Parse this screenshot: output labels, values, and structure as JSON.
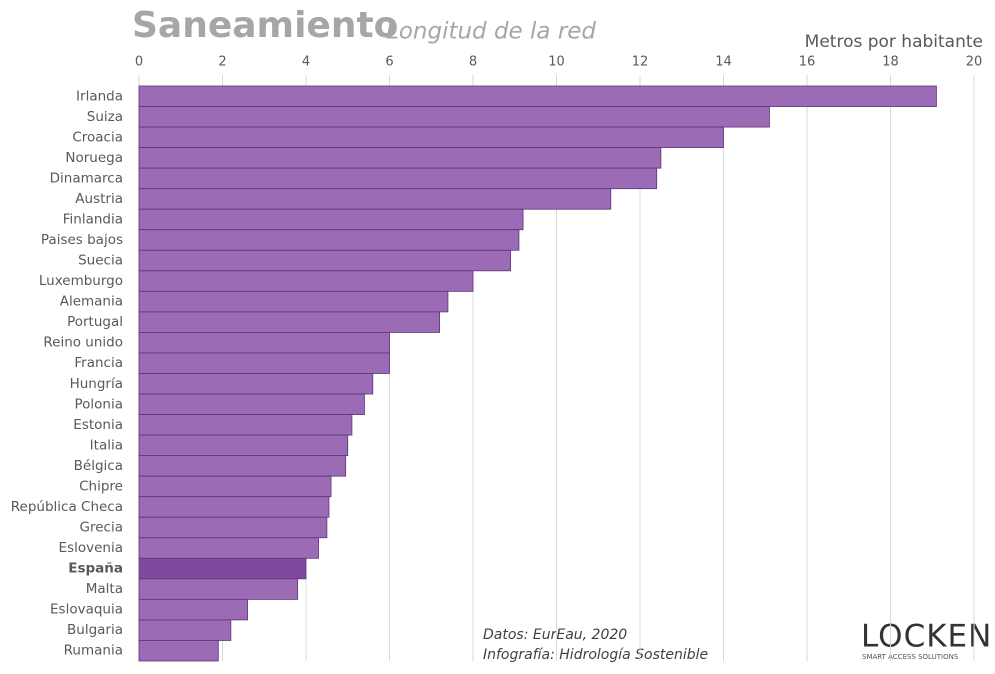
{
  "chart_data": {
    "type": "hbar",
    "title": "Saneamiento",
    "subtitle": "Longitud de la red",
    "x_label": "Metros por habitante",
    "categories": [
      "Irlanda",
      "Suiza",
      "Croacia",
      "Noruega",
      "Dinamarca",
      "Austria",
      "Finlandia",
      "Paises bajos",
      "Suecia",
      "Luxemburgo",
      "Alemania",
      "Portugal",
      "Reino unido",
      "Francia",
      "Hungría",
      "Polonia",
      "Estonia",
      "Italia",
      "Bélgica",
      "Chipre",
      "República Checa",
      "Grecia",
      "Eslovenia",
      "España",
      "Malta",
      "Eslovaquia",
      "Bulgaria",
      "Rumania"
    ],
    "values": [
      19.1,
      15.1,
      14.0,
      12.5,
      12.4,
      11.3,
      9.2,
      9.1,
      8.9,
      8.0,
      7.4,
      7.2,
      6.0,
      6.0,
      5.6,
      5.4,
      5.1,
      5.0,
      4.95,
      4.6,
      4.55,
      4.5,
      4.3,
      4.0,
      3.8,
      2.6,
      2.2,
      1.9
    ],
    "color": "#9b6bb5",
    "colors": [
      "#9b6bb5",
      "#9b6bb5",
      "#9b6bb5",
      "#9b6bb5",
      "#9b6bb5",
      "#9b6bb5",
      "#9b6bb5",
      "#9b6bb5",
      "#9b6bb5",
      "#9b6bb5",
      "#9b6bb5",
      "#9b6bb5",
      "#9b6bb5",
      "#9b6bb5",
      "#9b6bb5",
      "#9b6bb5",
      "#9b6bb5",
      "#9b6bb5",
      "#9b6bb5",
      "#9b6bb5",
      "#9b6bb5",
      "#9b6bb5",
      "#9b6bb5",
      "#7f4a9e",
      "#9b6bb5",
      "#9b6bb5",
      "#9b6bb5",
      "#9b6bb5"
    ],
    "xlim": [
      0,
      20
    ],
    "xticks": [
      0,
      2,
      4,
      6,
      8,
      10,
      12,
      14,
      16,
      18,
      20
    ],
    "grid": true,
    "source": "Datos: EurEau, 2020",
    "credit": "Infografía: Hidrología Sostenible",
    "logo": "LOCKEN",
    "logo_tagline": "SMART ACCESS SOLUTIONS"
  }
}
